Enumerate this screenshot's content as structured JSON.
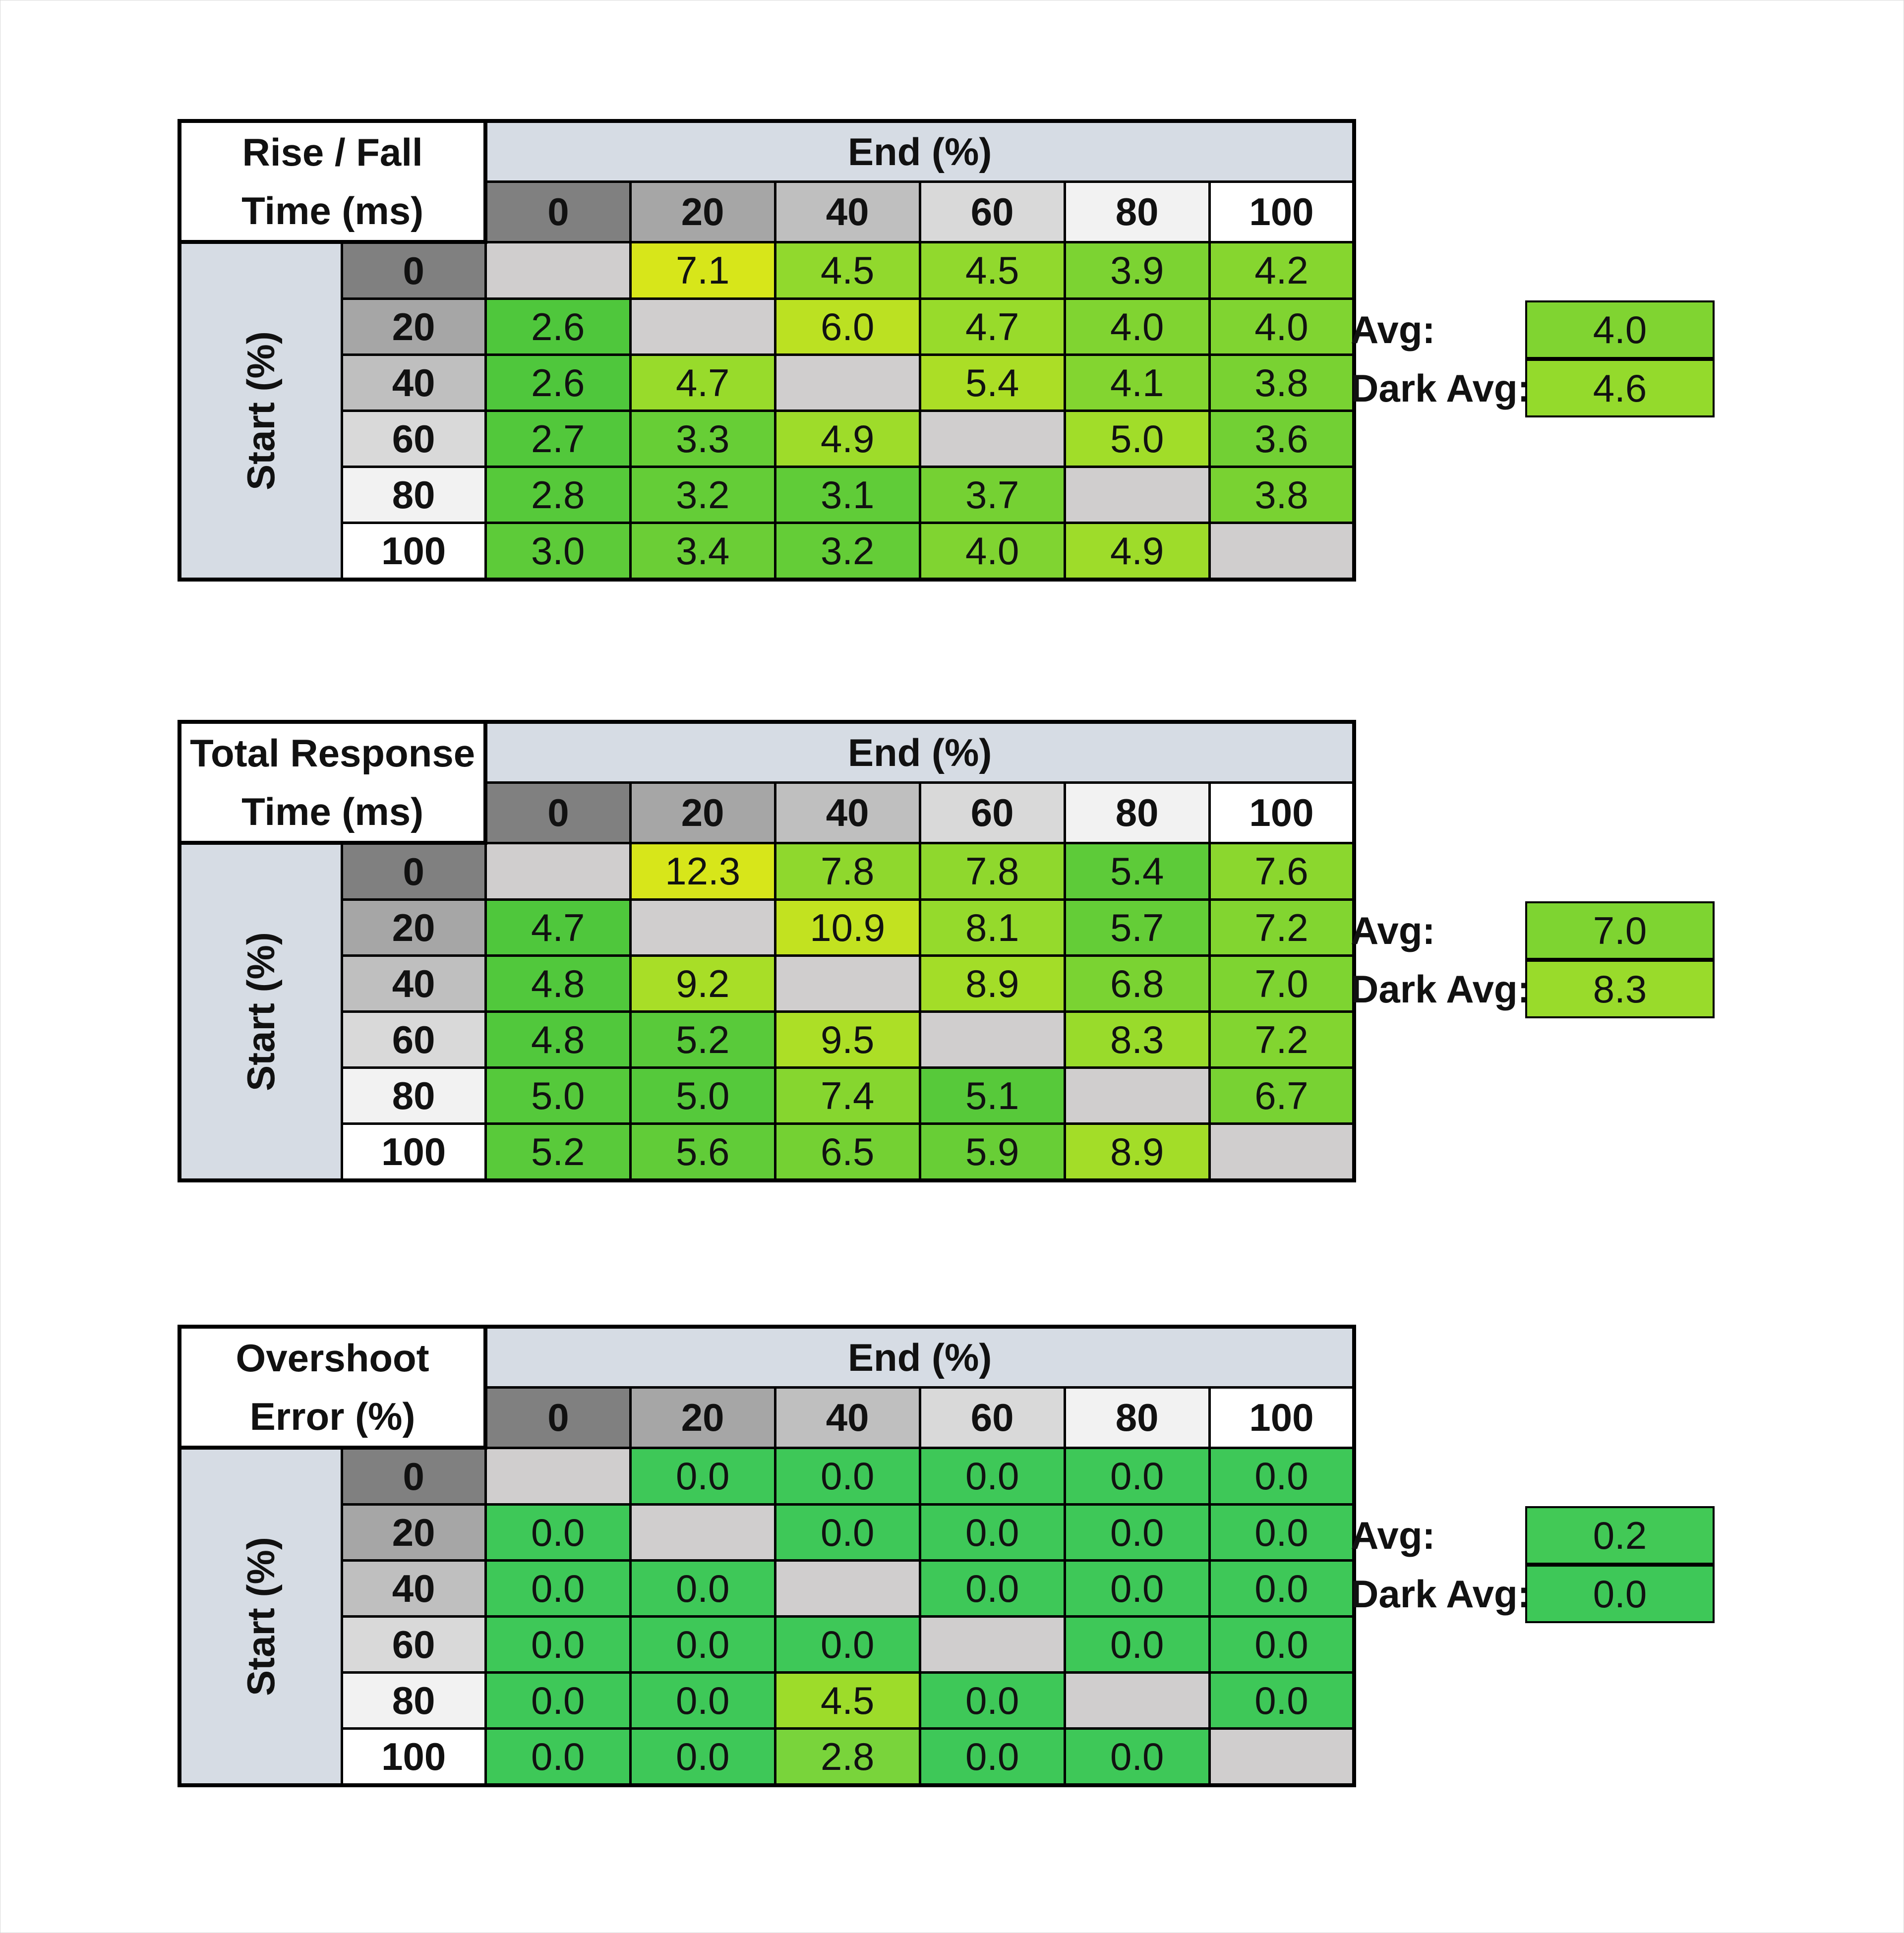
{
  "colors": {
    "header_band": "#d6dce4",
    "diagonal": "#d0cece",
    "scale_low": "#4fc73c",
    "scale_mid": "#9ddc2a",
    "scale_high": "#d7e61a",
    "overshoot_zero": "#3ec858"
  },
  "chart_data": [
    {
      "type": "heatmap",
      "title_lines": [
        "Rise / Fall",
        "Time (ms)"
      ],
      "xlabel": "End (%)",
      "ylabel": "Start (%)",
      "columns": [
        "0",
        "20",
        "40",
        "60",
        "80",
        "100"
      ],
      "rows": [
        "0",
        "20",
        "40",
        "60",
        "80",
        "100"
      ],
      "values": [
        [
          null,
          "7.1",
          "4.5",
          "4.5",
          "3.9",
          "4.2"
        ],
        [
          "2.6",
          null,
          "6.0",
          "4.7",
          "4.0",
          "4.0"
        ],
        [
          "2.6",
          "4.7",
          null,
          "5.4",
          "4.1",
          "3.8"
        ],
        [
          "2.7",
          "3.3",
          "4.9",
          null,
          "5.0",
          "3.6"
        ],
        [
          "2.8",
          "3.2",
          "3.1",
          "3.7",
          null,
          "3.8"
        ],
        [
          "3.0",
          "3.4",
          "3.2",
          "4.0",
          "4.9",
          null
        ]
      ],
      "summary": [
        {
          "label": "Avg:",
          "value": "4.0"
        },
        {
          "label": "Dark Avg:",
          "value": "4.6"
        }
      ]
    },
    {
      "type": "heatmap",
      "title_lines": [
        "Total Response",
        "Time (ms)"
      ],
      "xlabel": "End (%)",
      "ylabel": "Start (%)",
      "columns": [
        "0",
        "20",
        "40",
        "60",
        "80",
        "100"
      ],
      "rows": [
        "0",
        "20",
        "40",
        "60",
        "80",
        "100"
      ],
      "values": [
        [
          null,
          "12.3",
          "7.8",
          "7.8",
          "5.4",
          "7.6"
        ],
        [
          "4.7",
          null,
          "10.9",
          "8.1",
          "5.7",
          "7.2"
        ],
        [
          "4.8",
          "9.2",
          null,
          "8.9",
          "6.8",
          "7.0"
        ],
        [
          "4.8",
          "5.2",
          "9.5",
          null,
          "8.3",
          "7.2"
        ],
        [
          "5.0",
          "5.0",
          "7.4",
          "5.1",
          null,
          "6.7"
        ],
        [
          "5.2",
          "5.6",
          "6.5",
          "5.9",
          "8.9",
          null
        ]
      ],
      "summary": [
        {
          "label": "Avg:",
          "value": "7.0"
        },
        {
          "label": "Dark Avg:",
          "value": "8.3"
        }
      ]
    },
    {
      "type": "heatmap",
      "title_lines": [
        "Overshoot",
        "Error (%)"
      ],
      "xlabel": "End (%)",
      "ylabel": "Start (%)",
      "columns": [
        "0",
        "20",
        "40",
        "60",
        "80",
        "100"
      ],
      "rows": [
        "0",
        "20",
        "40",
        "60",
        "80",
        "100"
      ],
      "values": [
        [
          null,
          "0.0",
          "0.0",
          "0.0",
          "0.0",
          "0.0"
        ],
        [
          "0.0",
          null,
          "0.0",
          "0.0",
          "0.0",
          "0.0"
        ],
        [
          "0.0",
          "0.0",
          null,
          "0.0",
          "0.0",
          "0.0"
        ],
        [
          "0.0",
          "0.0",
          "0.0",
          null,
          "0.0",
          "0.0"
        ],
        [
          "0.0",
          "0.0",
          "4.5",
          "0.0",
          null,
          "0.0"
        ],
        [
          "0.0",
          "0.0",
          "2.8",
          "0.0",
          "0.0",
          null
        ]
      ],
      "summary": [
        {
          "label": "Avg:",
          "value": "0.2"
        },
        {
          "label": "Dark Avg:",
          "value": "0.0"
        }
      ]
    }
  ]
}
